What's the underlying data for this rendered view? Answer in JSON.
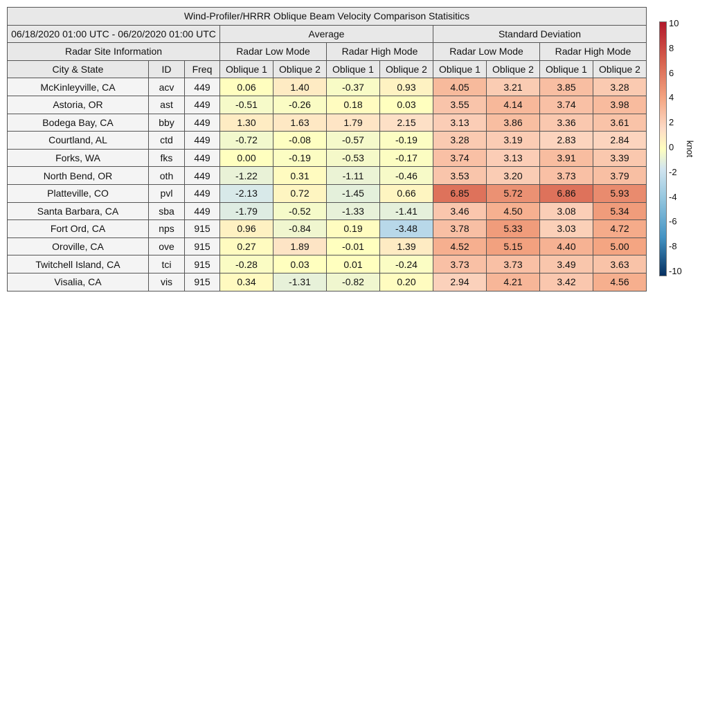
{
  "title": "Wind-Profiler/HRRR Oblique Beam Velocity Comparison Statisitics",
  "period": "06/18/2020 01:00 UTC - 06/20/2020 01:00 UTC",
  "group_headers": {
    "average": "Average",
    "std": "Standard Deviation"
  },
  "site_info_header": "Radar Site Information",
  "mode_headers": [
    "Radar Low Mode",
    "Radar High Mode",
    "Radar Low Mode",
    "Radar High Mode"
  ],
  "column_headers": [
    "City & State",
    "ID",
    "Freq",
    "Oblique 1",
    "Oblique 2",
    "Oblique 1",
    "Oblique 2",
    "Oblique 1",
    "Oblique 2",
    "Oblique 1",
    "Oblique 2"
  ],
  "chart_data": {
    "type": "table",
    "title": "Wind-Profiler/HRRR Oblique Beam Velocity Comparison Statisitics",
    "columns": [
      "City & State",
      "ID",
      "Freq",
      "Average Low Oblique 1",
      "Average Low Oblique 2",
      "Average High Oblique 1",
      "Average High Oblique 2",
      "Std Low Oblique 1",
      "Std Low Oblique 2",
      "Std High Oblique 1",
      "Std High Oblique 2"
    ],
    "rows": [
      {
        "city": "McKinleyville, CA",
        "id": "acv",
        "freq": "449",
        "values": [
          0.06,
          1.4,
          -0.37,
          0.93,
          4.05,
          3.21,
          3.85,
          3.28
        ]
      },
      {
        "city": "Astoria, OR",
        "id": "ast",
        "freq": "449",
        "values": [
          -0.51,
          -0.26,
          0.18,
          0.03,
          3.55,
          4.14,
          3.74,
          3.98
        ]
      },
      {
        "city": "Bodega Bay, CA",
        "id": "bby",
        "freq": "449",
        "values": [
          1.3,
          1.63,
          1.79,
          2.15,
          3.13,
          3.86,
          3.36,
          3.61
        ]
      },
      {
        "city": "Courtland, AL",
        "id": "ctd",
        "freq": "449",
        "values": [
          -0.72,
          -0.08,
          -0.57,
          -0.19,
          3.28,
          3.19,
          2.83,
          2.84
        ]
      },
      {
        "city": "Forks, WA",
        "id": "fks",
        "freq": "449",
        "values": [
          0.0,
          -0.19,
          -0.53,
          -0.17,
          3.74,
          3.13,
          3.91,
          3.39
        ]
      },
      {
        "city": "North Bend, OR",
        "id": "oth",
        "freq": "449",
        "values": [
          -1.22,
          0.31,
          -1.11,
          -0.46,
          3.53,
          3.2,
          3.73,
          3.79
        ]
      },
      {
        "city": "Platteville, CO",
        "id": "pvl",
        "freq": "449",
        "values": [
          -2.13,
          0.72,
          -1.45,
          0.66,
          6.85,
          5.72,
          6.86,
          5.93
        ]
      },
      {
        "city": "Santa Barbara, CA",
        "id": "sba",
        "freq": "449",
        "values": [
          -1.79,
          -0.52,
          -1.33,
          -1.41,
          3.46,
          4.5,
          3.08,
          5.34
        ]
      },
      {
        "city": "Fort Ord, CA",
        "id": "nps",
        "freq": "915",
        "values": [
          0.96,
          -0.84,
          0.19,
          -3.48,
          3.78,
          5.33,
          3.03,
          4.72
        ]
      },
      {
        "city": "Oroville, CA",
        "id": "ove",
        "freq": "915",
        "values": [
          0.27,
          1.89,
          -0.01,
          1.39,
          4.52,
          5.15,
          4.4,
          5.0
        ]
      },
      {
        "city": "Twitchell Island, CA",
        "id": "tci",
        "freq": "915",
        "values": [
          -0.28,
          0.03,
          0.01,
          -0.24,
          3.73,
          3.73,
          3.49,
          3.63
        ]
      },
      {
        "city": "Visalia, CA",
        "id": "vis",
        "freq": "915",
        "values": [
          0.34,
          -1.31,
          -0.82,
          0.2,
          2.94,
          4.21,
          3.42,
          4.56
        ]
      }
    ],
    "colorbar": {
      "min": -10,
      "max": 10,
      "unit": "knot",
      "ticks": [
        "10",
        "8",
        "6",
        "4",
        "2",
        "0",
        "-2",
        "-4",
        "-6",
        "-8",
        "-10"
      ],
      "colors": [
        "#053061",
        "#4393c3",
        "#92c5de",
        "#d1e5f0",
        "#ffffbf",
        "#fddbc7",
        "#f4a582",
        "#d6604d",
        "#b2182b"
      ]
    }
  }
}
